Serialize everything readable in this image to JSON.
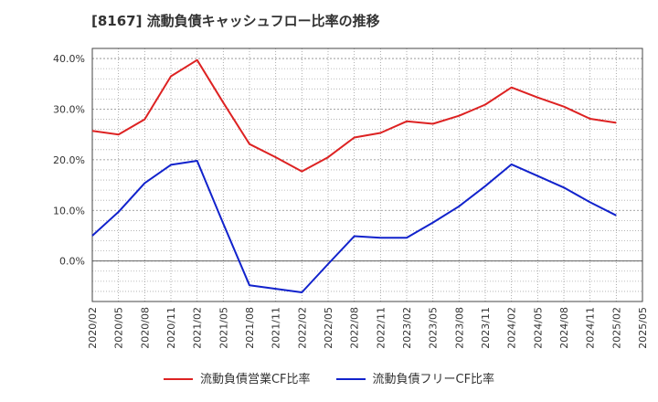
{
  "chart_data": {
    "type": "line",
    "title": "[8167]  流動負債キャッシュフロー比率の推移",
    "xlabel": "",
    "ylabel": "",
    "x": [
      "2020/02",
      "2020/05",
      "2020/08",
      "2020/11",
      "2021/02",
      "2021/05",
      "2021/08",
      "2021/11",
      "2022/02",
      "2022/05",
      "2022/08",
      "2022/11",
      "2023/02",
      "2023/05",
      "2023/08",
      "2023/11",
      "2024/02",
      "2024/05",
      "2024/08",
      "2024/11",
      "2025/02",
      "2025/05"
    ],
    "ylim": [
      -8,
      42
    ],
    "yticks": [
      0,
      10,
      20,
      30,
      40
    ],
    "ytick_labels": [
      "0.0%",
      "10.0%",
      "20.0%",
      "30.0%",
      "40.0%"
    ],
    "grid": true,
    "legend_position": "bottom",
    "series": [
      {
        "name": "流動負債営業CF比率",
        "color": "#dd2222",
        "values": [
          25.7,
          25.0,
          28.0,
          36.5,
          39.7,
          31.3,
          23.1,
          20.5,
          17.7,
          20.5,
          24.4,
          25.3,
          27.6,
          27.1,
          28.7,
          30.9,
          34.3,
          32.3,
          30.5,
          28.1,
          27.3,
          null
        ]
      },
      {
        "name": "流動負債フリーCF比率",
        "color": "#1122cc",
        "values": [
          5.0,
          9.7,
          15.4,
          19.0,
          19.8,
          7.4,
          -4.8,
          -5.5,
          -6.2,
          -0.6,
          4.9,
          4.6,
          4.6,
          7.6,
          10.8,
          14.8,
          19.1,
          16.8,
          14.5,
          11.6,
          9.0,
          null
        ]
      }
    ]
  }
}
